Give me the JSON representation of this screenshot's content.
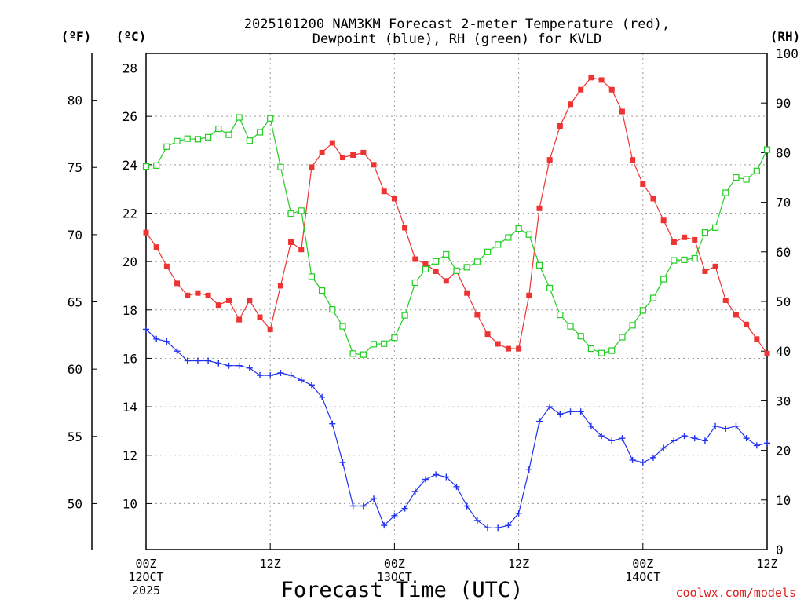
{
  "title_line1": "2025101200 NAM3KM Forecast 2-meter Temperature (red),",
  "title_line2": "Dewpoint (blue), RH (green) for KVLD",
  "watermark": "coolwx.com/models",
  "chart_data": {
    "type": "line",
    "title": "2025101200 NAM3KM Forecast 2-meter Temperature (red), Dewpoint (blue), RH (green) for KVLD",
    "xlabel": "Forecast Time (UTC)",
    "x_unit": "forecast hour",
    "xlim": [
      0,
      60
    ],
    "x_ticks": [
      {
        "hour": 0,
        "labels": [
          "00Z",
          "12OCT",
          "2025"
        ]
      },
      {
        "hour": 12,
        "labels": [
          "12Z"
        ]
      },
      {
        "hour": 24,
        "labels": [
          "00Z",
          "13OCT"
        ]
      },
      {
        "hour": 36,
        "labels": [
          "12Z"
        ]
      },
      {
        "hour": 48,
        "labels": [
          "00Z",
          "14OCT"
        ]
      },
      {
        "hour": 60,
        "labels": [
          "12Z"
        ]
      }
    ],
    "axes": {
      "celsius": {
        "label": "(ºC)",
        "min": 8.1,
        "max": 28.6,
        "ticks": [
          10,
          12,
          14,
          16,
          18,
          20,
          22,
          24,
          26,
          28
        ]
      },
      "fahrenheit": {
        "label": "(ºF)",
        "ticks": [
          50,
          55,
          60,
          65,
          70,
          75,
          80
        ]
      },
      "rh": {
        "label": "(RH)",
        "min": 0,
        "max": 100,
        "ticks": [
          0,
          10,
          20,
          30,
          40,
          50,
          60,
          70,
          80,
          90,
          100
        ]
      }
    },
    "series": [
      {
        "name": "2-meter Temperature",
        "axis": "celsius",
        "color": "#ee3333",
        "marker": "filled-square",
        "x": [
          0,
          1,
          2,
          3,
          4,
          5,
          6,
          7,
          8,
          9,
          10,
          11,
          12,
          13,
          14,
          15,
          16,
          17,
          18,
          19,
          20,
          21,
          22,
          23,
          24,
          25,
          26,
          27,
          28,
          29,
          30,
          31,
          32,
          33,
          34,
          35,
          36,
          37,
          38,
          39,
          40,
          41,
          42,
          43,
          44,
          45,
          46,
          47,
          48,
          49,
          50,
          51,
          52,
          53,
          54,
          55,
          56,
          57,
          58,
          59,
          60
        ],
        "values": [
          21.2,
          20.6,
          19.8,
          19.1,
          18.6,
          18.7,
          18.6,
          18.2,
          18.4,
          17.6,
          18.4,
          17.7,
          17.2,
          19.0,
          20.8,
          20.5,
          23.9,
          24.5,
          24.9,
          24.3,
          24.4,
          24.5,
          24.0,
          22.9,
          22.6,
          21.4,
          20.1,
          19.9,
          19.6,
          19.2,
          19.6,
          18.7,
          17.8,
          17.0,
          16.6,
          16.4,
          16.4,
          18.6,
          22.2,
          24.2,
          25.6,
          26.5,
          27.1,
          27.6,
          27.5,
          27.1,
          26.2,
          24.2,
          23.2,
          22.6,
          21.7,
          20.8,
          21.0,
          20.9,
          19.6,
          19.8,
          18.4,
          17.8,
          17.4,
          16.8,
          16.2
        ]
      },
      {
        "name": "Dewpoint",
        "axis": "celsius",
        "color": "#2233ee",
        "marker": "plus",
        "x": [
          0,
          1,
          2,
          3,
          4,
          5,
          6,
          7,
          8,
          9,
          10,
          11,
          12,
          13,
          14,
          15,
          16,
          17,
          18,
          19,
          20,
          21,
          22,
          23,
          24,
          25,
          26,
          27,
          28,
          29,
          30,
          31,
          32,
          33,
          34,
          35,
          36,
          37,
          38,
          39,
          40,
          41,
          42,
          43,
          44,
          45,
          46,
          47,
          48,
          49,
          50,
          51,
          52,
          53,
          54,
          55,
          56,
          57,
          58,
          59,
          60
        ],
        "values": [
          17.2,
          16.8,
          16.7,
          16.3,
          15.9,
          15.9,
          15.9,
          15.8,
          15.7,
          15.7,
          15.6,
          15.3,
          15.3,
          15.4,
          15.3,
          15.1,
          14.9,
          14.4,
          13.3,
          11.7,
          9.9,
          9.9,
          10.2,
          9.1,
          9.5,
          9.8,
          10.5,
          11.0,
          11.2,
          11.1,
          10.7,
          9.9,
          9.3,
          9.0,
          9.0,
          9.1,
          9.6,
          11.4,
          13.4,
          14.0,
          13.7,
          13.8,
          13.8,
          13.2,
          12.8,
          12.6,
          12.7,
          11.8,
          11.7,
          11.9,
          12.3,
          12.6,
          12.8,
          12.7,
          12.6,
          13.2,
          13.1,
          13.2,
          12.7,
          12.4,
          12.5
        ]
      },
      {
        "name": "RH",
        "axis": "rh",
        "color": "#22cc22",
        "marker": "open-square",
        "x": [
          0,
          1,
          2,
          3,
          4,
          5,
          6,
          7,
          8,
          9,
          10,
          11,
          12,
          13,
          14,
          15,
          16,
          17,
          18,
          19,
          20,
          21,
          22,
          23,
          24,
          25,
          26,
          27,
          28,
          29,
          30,
          31,
          32,
          33,
          34,
          35,
          36,
          37,
          38,
          39,
          40,
          41,
          42,
          43,
          44,
          45,
          46,
          47,
          48,
          49,
          50,
          51,
          52,
          53,
          54,
          55,
          56,
          57,
          58,
          59,
          60
        ],
        "values": [
          77.2,
          77.4,
          81.2,
          82.3,
          82.8,
          82.7,
          83.1,
          84.8,
          83.6,
          87.1,
          82.4,
          84.1,
          86.9,
          77.1,
          67.7,
          68.3,
          55.0,
          52.2,
          48.4,
          45.0,
          39.5,
          39.3,
          41.4,
          41.5,
          42.7,
          47.2,
          53.8,
          56.5,
          58.1,
          59.5,
          56.2,
          56.9,
          58.0,
          60.0,
          61.5,
          62.9,
          64.7,
          63.5,
          57.3,
          52.7,
          47.3,
          45.0,
          43.0,
          40.5,
          39.6,
          40.1,
          42.8,
          45.2,
          48.2,
          50.7,
          54.5,
          58.3,
          58.4,
          58.7,
          63.9,
          64.9,
          71.9,
          75.0,
          74.6,
          76.3,
          80.6
        ]
      }
    ]
  }
}
